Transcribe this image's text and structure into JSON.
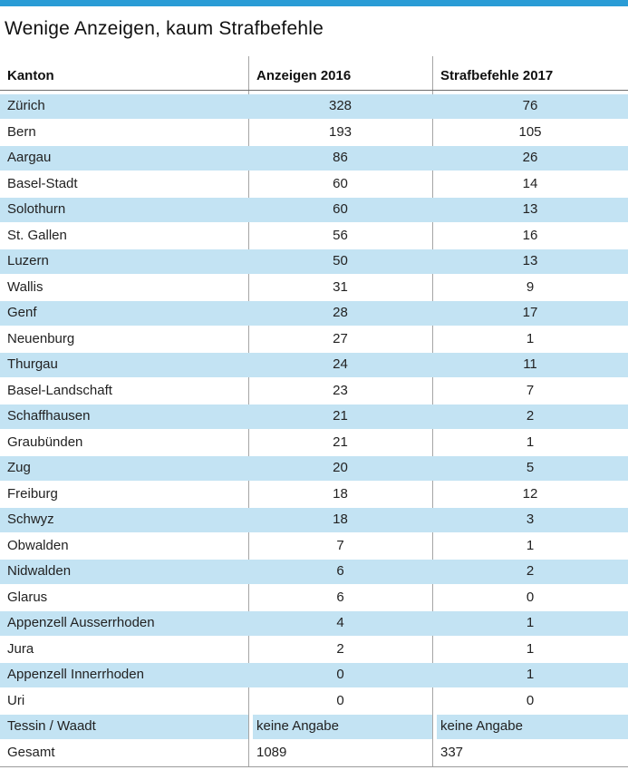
{
  "colors": {
    "accent_bar": "#2a9cd6",
    "row_stripe": "#c3e3f3",
    "column_divider": "#a5a5a5",
    "header_rule": "#6e6e6e",
    "bottom_rule": "#9c9c9c"
  },
  "chart_data": {
    "type": "table",
    "title": "Wenige Anzeigen, kaum Strafbefehle",
    "columns": [
      "Kanton",
      "Anzeigen 2016",
      "Strafbefehle 2017"
    ],
    "layout_hints": {
      "zebra_striping": "odd rows light blue",
      "numeric_alignment": "center",
      "last_two_rows_alignment": "left"
    },
    "rows": [
      {
        "kanton": "Zürich",
        "anzeigen_2016": 328,
        "strafbefehle_2017": 76
      },
      {
        "kanton": "Bern",
        "anzeigen_2016": 193,
        "strafbefehle_2017": 105
      },
      {
        "kanton": "Aargau",
        "anzeigen_2016": 86,
        "strafbefehle_2017": 26
      },
      {
        "kanton": "Basel-Stadt",
        "anzeigen_2016": 60,
        "strafbefehle_2017": 14
      },
      {
        "kanton": "Solothurn",
        "anzeigen_2016": 60,
        "strafbefehle_2017": 13
      },
      {
        "kanton": "St. Gallen",
        "anzeigen_2016": 56,
        "strafbefehle_2017": 16
      },
      {
        "kanton": "Luzern",
        "anzeigen_2016": 50,
        "strafbefehle_2017": 13
      },
      {
        "kanton": "Wallis",
        "anzeigen_2016": 31,
        "strafbefehle_2017": 9
      },
      {
        "kanton": "Genf",
        "anzeigen_2016": 28,
        "strafbefehle_2017": 17
      },
      {
        "kanton": "Neuenburg",
        "anzeigen_2016": 27,
        "strafbefehle_2017": 1
      },
      {
        "kanton": "Thurgau",
        "anzeigen_2016": 24,
        "strafbefehle_2017": 11
      },
      {
        "kanton": "Basel-Landschaft",
        "anzeigen_2016": 23,
        "strafbefehle_2017": 7
      },
      {
        "kanton": "Schaffhausen",
        "anzeigen_2016": 21,
        "strafbefehle_2017": 2
      },
      {
        "kanton": "Graubünden",
        "anzeigen_2016": 21,
        "strafbefehle_2017": 1
      },
      {
        "kanton": "Zug",
        "anzeigen_2016": 20,
        "strafbefehle_2017": 5
      },
      {
        "kanton": "Freiburg",
        "anzeigen_2016": 18,
        "strafbefehle_2017": 12
      },
      {
        "kanton": "Schwyz",
        "anzeigen_2016": 18,
        "strafbefehle_2017": 3
      },
      {
        "kanton": "Obwalden",
        "anzeigen_2016": 7,
        "strafbefehle_2017": 1
      },
      {
        "kanton": "Nidwalden",
        "anzeigen_2016": 6,
        "strafbefehle_2017": 2
      },
      {
        "kanton": "Glarus",
        "anzeigen_2016": 6,
        "strafbefehle_2017": 0
      },
      {
        "kanton": "Appenzell Ausserrhoden",
        "anzeigen_2016": 4,
        "strafbefehle_2017": 1
      },
      {
        "kanton": "Jura",
        "anzeigen_2016": 2,
        "strafbefehle_2017": 1
      },
      {
        "kanton": "Appenzell Innerrhoden",
        "anzeigen_2016": 0,
        "strafbefehle_2017": 1
      },
      {
        "kanton": "Uri",
        "anzeigen_2016": 0,
        "strafbefehle_2017": 0
      },
      {
        "kanton": "Tessin / Waadt",
        "anzeigen_2016": "keine Angabe",
        "strafbefehle_2017": "keine Angabe",
        "values_left_aligned": true,
        "per_cell_highlight": true
      },
      {
        "kanton": "Gesamt",
        "anzeigen_2016": 1089,
        "strafbefehle_2017": 337,
        "values_left_aligned": true
      }
    ]
  }
}
